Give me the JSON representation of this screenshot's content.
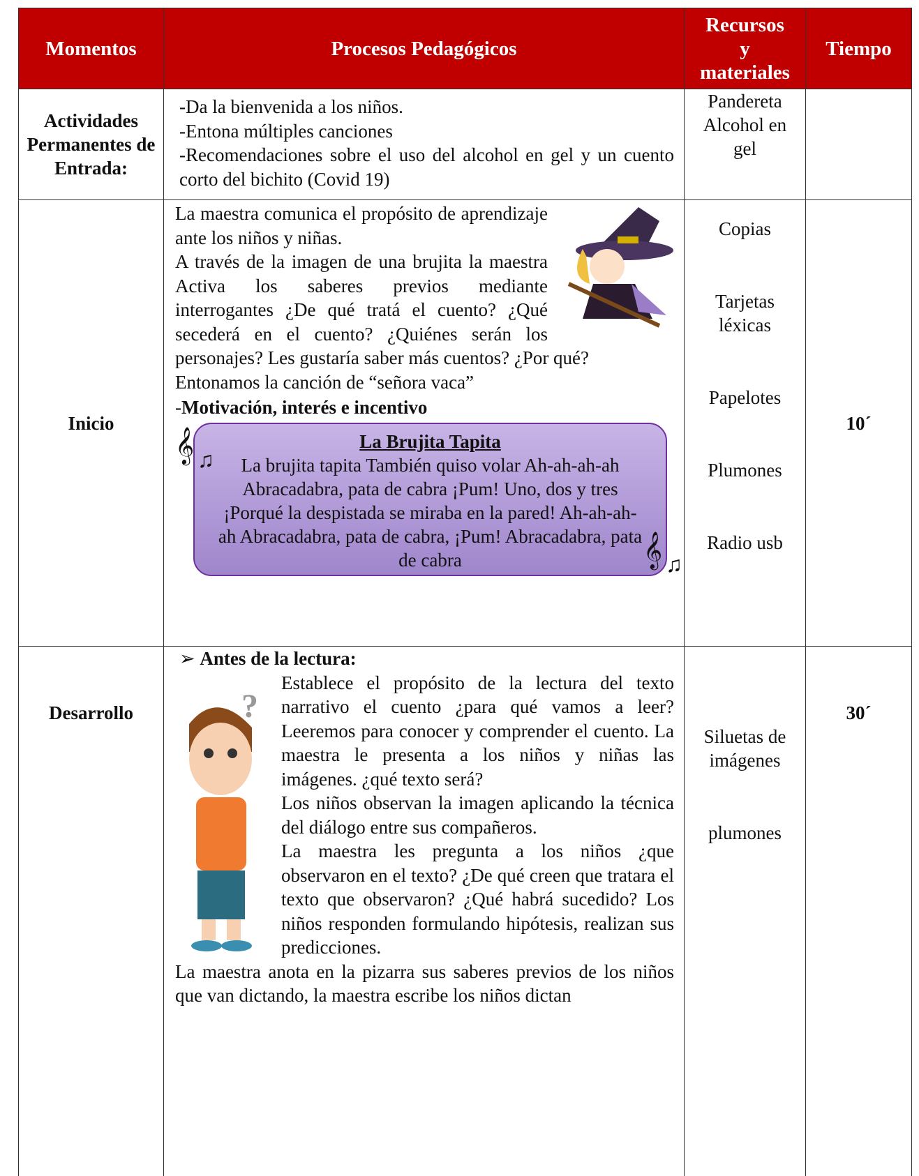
{
  "table": {
    "header": [
      "Momentos",
      "Procesos Pedagógicos",
      "Recursos y materiales",
      "Tiempo"
    ],
    "rows": [
      {
        "moment": "Actividades Permanentes de Entrada:",
        "process": [
          "-Da la bienvenida a los niños.",
          "-Entona múltiples canciones",
          "-Recomendaciones sobre el uso del alcohol en gel y un cuento corto del bichito (Covid 19)"
        ],
        "resources": [
          "Pandereta",
          "Alcohol en gel"
        ]
      },
      {
        "moment": "Inicio",
        "process": [
          "La maestra comunica el propósito de aprendizaje ante los niños y niñas.",
          "A través de la imagen de una brujita la maestra Activa los saberes previos mediante interrogantes ¿De qué tratá el cuento? ¿Qué secederá en el cuento? ¿Quiénes serán los personajes? Les gustaría saber más cuentos? ¿Por qué?",
          "Entonamos la canción de “señora vaca”"
        ],
        "motivation": {
          "marker": "-",
          "text": "Motivación, interés e incentivo"
        },
        "song": {
          "title": "La Brujita Tapita",
          "text": "La brujita tapita También quiso volar Ah-ah-ah-ah Abracadabra, pata de cabra ¡Pum! Uno, dos y tres ¡Porqué la despistada se miraba en la pared! Ah-ah-ah-ah Abracadabra, pata de cabra, ¡Pum! Abracadabra, pata de cabra"
        },
        "resources": [
          "Copias",
          "Tarjetas léxicas",
          "Papelotes",
          "Plumones",
          "Radio usb"
        ],
        "time": "10´"
      },
      {
        "moment": "Desarrollo",
        "subheading": {
          "marker": "➢",
          "text": "Antes de la lectura:"
        },
        "process": [
          "Establece el propósito de la lectura del texto narrativo el cuento ¿para qué vamos a leer? Leeremos para conocer y comprender el cuento. La maestra le presenta a los niños y niñas las imágenes. ¿qué texto será?",
          "Los niños observan la imagen aplicando la técnica del diálogo entre sus compañeros.",
          "La maestra les pregunta a los niños ¿que observaron en el texto? ¿De qué creen que tratara el texto que observaron? ¿Qué habrá sucedido? Los niños responden formulando hipótesis, realizan sus predicciones.",
          "La maestra anota en la pizarra sus saberes previos de los niños que van dictando, la maestra escribe los niños dictan"
        ],
        "resources": [
          "Siluetas de imágenes",
          "plumones"
        ],
        "time": "30´"
      }
    ]
  }
}
